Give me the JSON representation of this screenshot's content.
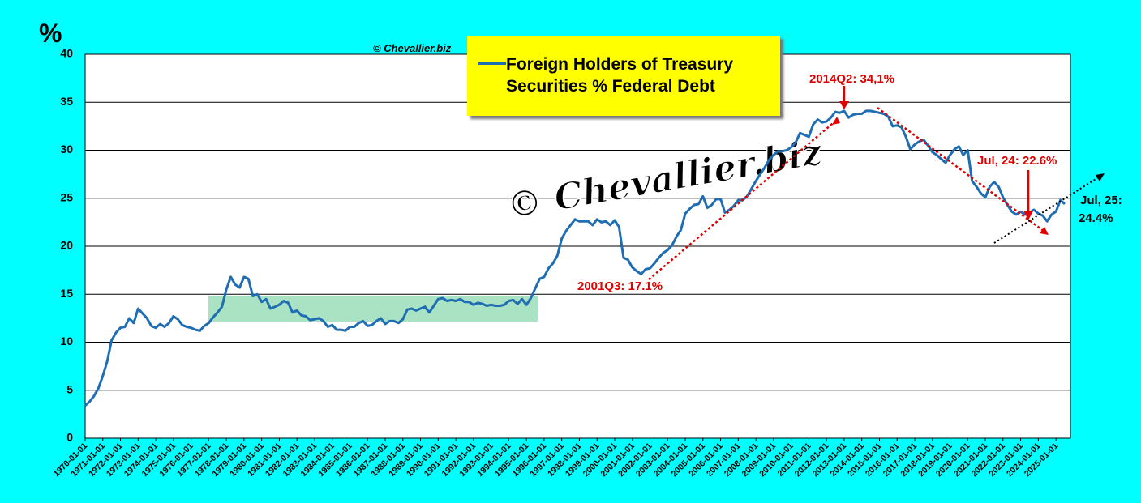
{
  "chart_data": {
    "type": "line",
    "y_label": "%",
    "watermark_small": "© Chevallier.biz",
    "watermark_large": "© Chevallier.biz",
    "ylim": [
      0,
      40
    ],
    "yticks": [
      0,
      5,
      10,
      15,
      20,
      25,
      30,
      35,
      40
    ],
    "grid": true,
    "categories": [
      "1970-01-01",
      null,
      null,
      null,
      "1971-01-01",
      null,
      null,
      null,
      "1972-01-01",
      null,
      null,
      null,
      "1973-01-01",
      null,
      null,
      null,
      "1974-01-01",
      null,
      null,
      null,
      "1975-01-01",
      null,
      null,
      null,
      "1976-01-01",
      null,
      null,
      null,
      "1977-01-01",
      null,
      null,
      null,
      "1978-01-01",
      null,
      null,
      null,
      "1979-01-01",
      null,
      null,
      null,
      "1980-01-01",
      null,
      null,
      null,
      "1981-01-01",
      null,
      null,
      null,
      "1982-01-01",
      null,
      null,
      null,
      "1983-01-01",
      null,
      null,
      null,
      "1984-01-01",
      null,
      null,
      null,
      "1985-01-01",
      null,
      null,
      null,
      "1986-01-01",
      null,
      null,
      null,
      "1987-01-01",
      null,
      null,
      null,
      "1988-01-01",
      null,
      null,
      null,
      "1989-01-01",
      null,
      null,
      null,
      "1990-01-01",
      null,
      null,
      null,
      "1991-01-01",
      null,
      null,
      null,
      "1992-01-01",
      null,
      null,
      null,
      "1993-01-01",
      null,
      null,
      null,
      "1994-01-01",
      null,
      null,
      null,
      "1995-01-01",
      null,
      null,
      null,
      "1996-01-01",
      null,
      null,
      null,
      "1997-01-01",
      null,
      null,
      null,
      "1998-01-01",
      null,
      null,
      null,
      "1999-01-01",
      null,
      null,
      null,
      "2000-01-01",
      null,
      null,
      null,
      "2001-01-01",
      null,
      null,
      null,
      "2002-01-01",
      null,
      null,
      null,
      "2003-01-01",
      null,
      null,
      null,
      "2004-01-01",
      null,
      null,
      null,
      "2005-01-01",
      null,
      null,
      null,
      "2006-01-01",
      null,
      null,
      null,
      "2007-01-01",
      null,
      null,
      null,
      "2008-01-01",
      null,
      null,
      null,
      "2009-01-01",
      null,
      null,
      null,
      "2010-01-01",
      null,
      null,
      null,
      "2011-01-01",
      null,
      null,
      null,
      "2012-01-01",
      null,
      null,
      null,
      "2013-01-01",
      null,
      null,
      null,
      "2014-01-01",
      null,
      null,
      null,
      "2015-01-01",
      null,
      null,
      null,
      "2016-01-01",
      null,
      null,
      null,
      "2017-01-01",
      null,
      null,
      null,
      "2018-01-01",
      null,
      null,
      null,
      "2019-01-01",
      null,
      null,
      null,
      "2020-01-01",
      null,
      null,
      null,
      "2021-01-01",
      null,
      null,
      null,
      "2022-01-01",
      null,
      null,
      null,
      "2023-01-01",
      null,
      null,
      null,
      "2024-01-01",
      null,
      null,
      null,
      "2025-01-01",
      null,
      null
    ],
    "series": [
      {
        "name": "Foreign Holders of Treasury Securities % Federal Debt",
        "color": "#1f6db3",
        "values": [
          3.4,
          3.8,
          4.4,
          5.2,
          6.5,
          8.0,
          10.2,
          11.0,
          11.5,
          11.6,
          12.5,
          12.0,
          13.5,
          13.0,
          12.5,
          11.7,
          11.5,
          11.9,
          11.6,
          12.0,
          12.7,
          12.4,
          11.8,
          11.6,
          11.5,
          11.3,
          11.2,
          11.7,
          12.0,
          12.6,
          13.1,
          13.7,
          15.5,
          16.8,
          16.0,
          15.7,
          16.8,
          16.6,
          14.8,
          15.0,
          14.2,
          14.5,
          13.5,
          13.7,
          13.9,
          14.3,
          14.1,
          13.1,
          13.3,
          12.8,
          12.7,
          12.3,
          12.4,
          12.5,
          12.2,
          11.6,
          11.8,
          11.3,
          11.3,
          11.2,
          11.6,
          11.6,
          12.0,
          12.2,
          11.7,
          11.8,
          12.2,
          12.5,
          11.9,
          12.2,
          12.2,
          12.0,
          12.4,
          13.4,
          13.5,
          13.3,
          13.5,
          13.7,
          13.1,
          13.8,
          14.5,
          14.6,
          14.3,
          14.4,
          14.3,
          14.5,
          14.2,
          14.2,
          13.9,
          14.1,
          14.0,
          13.8,
          13.9,
          13.8,
          13.8,
          13.9,
          14.3,
          14.4,
          14.0,
          14.5,
          13.9,
          14.6,
          15.6,
          16.6,
          16.8,
          17.7,
          18.2,
          19.0,
          20.8,
          21.6,
          22.2,
          22.8,
          22.6,
          22.6,
          22.6,
          22.2,
          22.8,
          22.5,
          22.6,
          22.2,
          22.7,
          22.0,
          18.8,
          18.6,
          17.8,
          17.4,
          17.1,
          17.6,
          17.7,
          18.2,
          18.8,
          19.3,
          19.6,
          20.1,
          21.0,
          21.7,
          23.4,
          23.9,
          24.3,
          24.4,
          25.2,
          24.0,
          24.3,
          24.9,
          24.9,
          23.5,
          23.8,
          24.2,
          24.8,
          24.8,
          25.2,
          26.0,
          26.8,
          27.5,
          28.2,
          29.0,
          29.5,
          29.9,
          29.9,
          30.0,
          30.3,
          30.8,
          31.8,
          31.6,
          31.4,
          32.7,
          33.2,
          32.9,
          33.0,
          33.4,
          34.0,
          33.9,
          34.1,
          33.4,
          33.7,
          33.8,
          33.8,
          34.1,
          34.1,
          34.0,
          33.9,
          33.8,
          33.5,
          32.5,
          32.6,
          32.4,
          31.4,
          30.1,
          30.6,
          30.9,
          31.1,
          30.5,
          29.8,
          29.5,
          29.1,
          28.7,
          29.5,
          30.1,
          30.4,
          29.5,
          30.0,
          26.8,
          26.2,
          25.5,
          25.1,
          26.2,
          26.7,
          26.2,
          25.1,
          24.3,
          23.6,
          23.3,
          23.6,
          23.3,
          23.5,
          23.8,
          23.4,
          23.2,
          22.6,
          23.3,
          23.6,
          24.8,
          24.4
        ]
      }
    ],
    "annotations": [
      "2001Q3: 17.1%",
      "2014Q2: 34,1%",
      "Jul, 24: 22.6%",
      [
        "Jul, 25:",
        "24.4%"
      ]
    ]
  }
}
